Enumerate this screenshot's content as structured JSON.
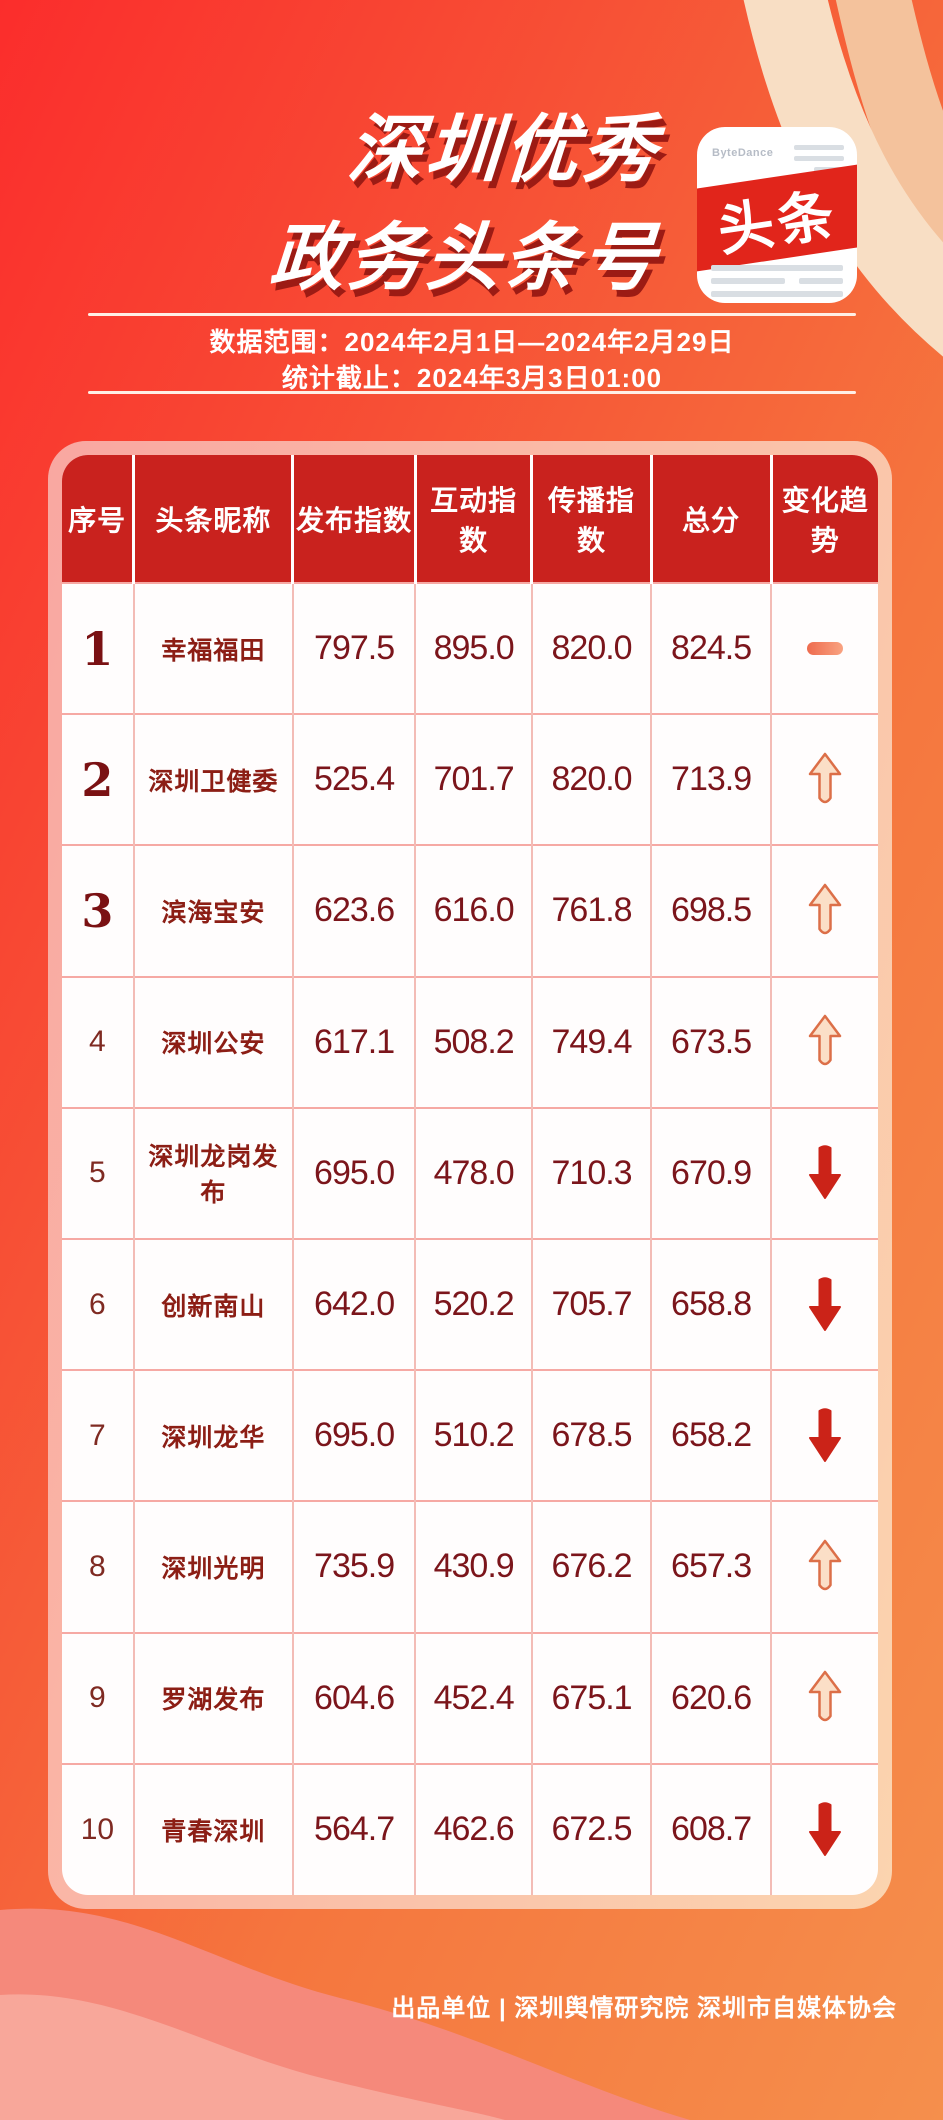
{
  "poster": {
    "title_line1": "深圳优秀",
    "title_line2": "政务头条号",
    "badge": {
      "brand": "ByteDance",
      "label": "头条"
    },
    "date_range": "数据范围：2024年2月1日—2024年2月29日",
    "stats_deadline": "统计截止：2024年3月3日01:00",
    "footer": "出品单位 | 深圳舆情研究院 深圳市自媒体协会"
  },
  "colors": {
    "background_red": "#FB2D2C",
    "background_orange": "#F58F4C",
    "header_red": "#C9221E",
    "value_maroon": "#7B151B",
    "name_maroon": "#8C1E15",
    "card_border_pink": "#F9A7A1",
    "card_border_peach": "#FBD4AF",
    "up_arrow_fill": "#FBDFC7",
    "up_arrow_stroke": "#DC6F48",
    "down_arrow": "#CB2318",
    "flat_dash": "#EE6B4E"
  },
  "table": {
    "headers": [
      "序号",
      "头条昵称",
      "发布指数",
      "互动指数",
      "传播指数",
      "总分",
      "变化趋势"
    ],
    "rows": [
      {
        "rank": "1",
        "name": "幸福福田",
        "publish": "797.5",
        "interact": "895.0",
        "spread": "820.0",
        "total": "824.5",
        "trend": "flat"
      },
      {
        "rank": "2",
        "name": "深圳卫健委",
        "publish": "525.4",
        "interact": "701.7",
        "spread": "820.0",
        "total": "713.9",
        "trend": "up"
      },
      {
        "rank": "3",
        "name": "滨海宝安",
        "publish": "623.6",
        "interact": "616.0",
        "spread": "761.8",
        "total": "698.5",
        "trend": "up"
      },
      {
        "rank": "4",
        "name": "深圳公安",
        "publish": "617.1",
        "interact": "508.2",
        "spread": "749.4",
        "total": "673.5",
        "trend": "up"
      },
      {
        "rank": "5",
        "name": "深圳龙岗发布",
        "publish": "695.0",
        "interact": "478.0",
        "spread": "710.3",
        "total": "670.9",
        "trend": "down"
      },
      {
        "rank": "6",
        "name": "创新南山",
        "publish": "642.0",
        "interact": "520.2",
        "spread": "705.7",
        "total": "658.8",
        "trend": "down"
      },
      {
        "rank": "7",
        "name": "深圳龙华",
        "publish": "695.0",
        "interact": "510.2",
        "spread": "678.5",
        "total": "658.2",
        "trend": "down"
      },
      {
        "rank": "8",
        "name": "深圳光明",
        "publish": "735.9",
        "interact": "430.9",
        "spread": "676.2",
        "total": "657.3",
        "trend": "up"
      },
      {
        "rank": "9",
        "name": "罗湖发布",
        "publish": "604.6",
        "interact": "452.4",
        "spread": "675.1",
        "total": "620.6",
        "trend": "up"
      },
      {
        "rank": "10",
        "name": "青春深圳",
        "publish": "564.7",
        "interact": "462.6",
        "spread": "672.5",
        "total": "608.7",
        "trend": "down"
      }
    ]
  },
  "chart_data": {
    "type": "table",
    "title": "深圳优秀政务头条号",
    "subtitle": "数据范围：2024年2月1日—2024年2月29日 统计截止：2024年3月3日01:00",
    "columns": [
      "序号",
      "头条昵称",
      "发布指数",
      "互动指数",
      "传播指数",
      "总分",
      "变化趋势"
    ],
    "rows": [
      [
        "1",
        "幸福福田",
        797.5,
        895.0,
        820.0,
        824.5,
        "flat"
      ],
      [
        "2",
        "深圳卫健委",
        525.4,
        701.7,
        820.0,
        713.9,
        "up"
      ],
      [
        "3",
        "滨海宝安",
        623.6,
        616.0,
        761.8,
        698.5,
        "up"
      ],
      [
        "4",
        "深圳公安",
        617.1,
        508.2,
        749.4,
        673.5,
        "up"
      ],
      [
        "5",
        "深圳龙岗发布",
        695.0,
        478.0,
        710.3,
        670.9,
        "down"
      ],
      [
        "6",
        "创新南山",
        642.0,
        520.2,
        705.7,
        658.8,
        "down"
      ],
      [
        "7",
        "深圳龙华",
        695.0,
        510.2,
        678.5,
        658.2,
        "down"
      ],
      [
        "8",
        "深圳光明",
        735.9,
        430.9,
        676.2,
        657.3,
        "up"
      ],
      [
        "9",
        "罗湖发布",
        604.6,
        452.4,
        675.1,
        620.6,
        "up"
      ],
      [
        "10",
        "青春深圳",
        564.7,
        462.6,
        672.5,
        608.7,
        "down"
      ]
    ]
  }
}
